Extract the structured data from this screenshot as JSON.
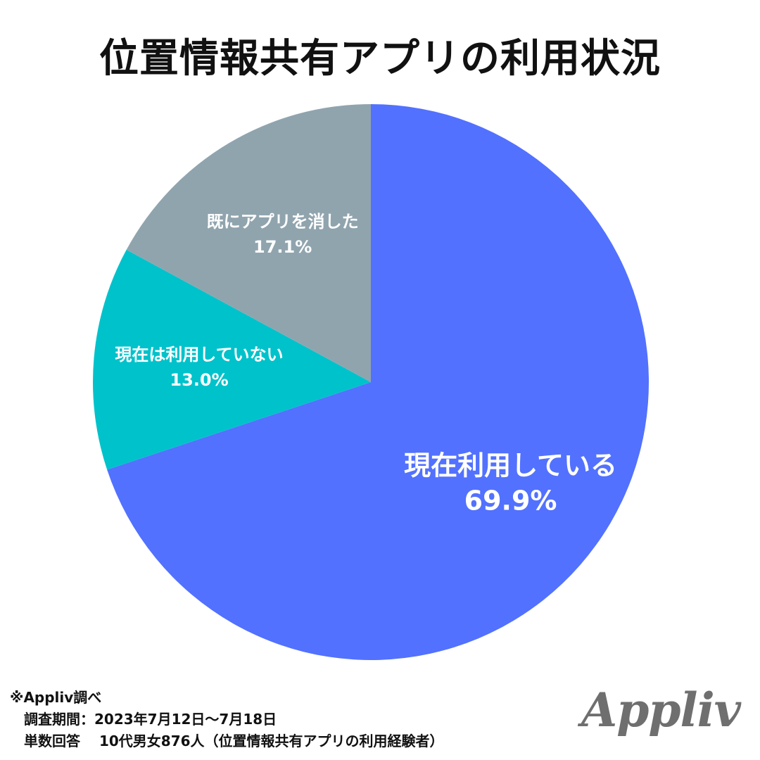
{
  "title": "位置情報共有アプリの利用状況",
  "chart_data": {
    "type": "pie",
    "title": "位置情報共有アプリの利用状況",
    "slices": [
      {
        "name": "現在利用している",
        "value": 69.9,
        "label": "69.9%",
        "color": "#5271ff"
      },
      {
        "name": "現在は利用していない",
        "value": 13.0,
        "label": "13.0%",
        "color": "#00c2cb"
      },
      {
        "name": "既にアプリを消した",
        "value": 17.1,
        "label": "17.1%",
        "color": "#90a4ae"
      }
    ],
    "start": "12 o'clock",
    "direction": "clockwise"
  },
  "footer": {
    "source": "※Appliv調べ",
    "period": "　調査期間：2023年7月12日〜7月18日",
    "respondents": "　単数回答　 10代男女876人（位置情報共有アプリの利用経験者）"
  },
  "logo": {
    "text": "Appliv",
    "color": "#6f6f6f"
  }
}
